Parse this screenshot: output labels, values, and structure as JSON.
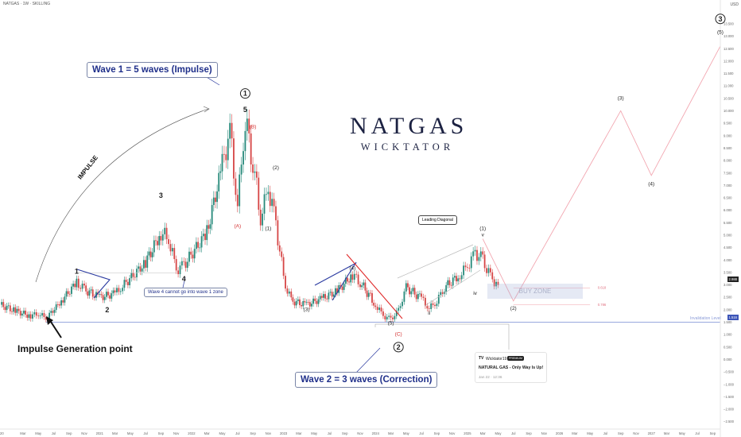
{
  "header": {
    "symbol": "NATGAS · 1W · SKILLING",
    "currency": "USD"
  },
  "logo": {
    "line1": "NATGAS",
    "line2": "WICKTATOR"
  },
  "annotations": {
    "wave1": "Wave 1 = 5 waves (Impulse)",
    "wave2": "Wave 2 = 3 waves (Correction)",
    "wave4_note": "Wave 4 cannot go into wave 1 zone",
    "impulse_gen": "Impulse Generation point",
    "impulse_word": "IMPULSE",
    "leading_diagonal": "Leading Diagonal",
    "buy_zone": "BUY ZONE",
    "invalidation": "Invalidation Level"
  },
  "idea_card": {
    "author": "Wicktator19",
    "badge": "PREMIUM",
    "title": "NATURAL GAS - Only Way Is Up!",
    "date": "Jan 22 · 12:36"
  },
  "price_tags": {
    "current": "2.988",
    "invalidation": "1.516"
  },
  "chart_data": {
    "type": "line",
    "title": "NATGAS · 1W · SKILLING",
    "y_axis": {
      "unit": "USD",
      "ylim": [
        -2.8,
        14.2
      ],
      "ticks": [
        13.5,
        13.0,
        12.5,
        12.0,
        11.5,
        11.0,
        10.5,
        10.0,
        9.5,
        9.0,
        8.5,
        8.0,
        7.5,
        7.0,
        6.5,
        6.0,
        5.5,
        5.0,
        4.5,
        4.0,
        3.5,
        3.0,
        2.5,
        2.0,
        1.5,
        1.0,
        0.5,
        0.0,
        -0.5,
        -1.0,
        -1.5,
        -2.0,
        -2.5
      ],
      "tick_labels": [
        "13.500",
        "13.000",
        "12.500",
        "12.000",
        "11.500",
        "11.000",
        "10.500",
        "10.000",
        "9.500",
        "9.000",
        "8.500",
        "8.000",
        "7.500",
        "7.000",
        "6.500",
        "6.000",
        "5.500",
        "5.000",
        "4.500",
        "4.000",
        "3.500",
        "3.000",
        "2.500",
        "2.000",
        "1.500",
        "1.000",
        "0.500",
        "0.000",
        "−0.500",
        "−1.000",
        "−1.500",
        "−2.000",
        "−2.500"
      ]
    },
    "x_axis": {
      "range": [
        "2019-12",
        "2027-10"
      ],
      "ticks": [
        {
          "date": "2019-12",
          "label": "2020"
        },
        {
          "date": "2020-03",
          "label": "Mar"
        },
        {
          "date": "2020-05",
          "label": "May"
        },
        {
          "date": "2020-07",
          "label": "Jul"
        },
        {
          "date": "2020-09",
          "label": "Sep"
        },
        {
          "date": "2020-11",
          "label": "Nov"
        },
        {
          "date": "2021-01",
          "label": "2021"
        },
        {
          "date": "2021-03",
          "label": "Mar"
        },
        {
          "date": "2021-05",
          "label": "May"
        },
        {
          "date": "2021-07",
          "label": "Jul"
        },
        {
          "date": "2021-09",
          "label": "Sep"
        },
        {
          "date": "2021-11",
          "label": "Nov"
        },
        {
          "date": "2022-01",
          "label": "2022"
        },
        {
          "date": "2022-03",
          "label": "Mar"
        },
        {
          "date": "2022-05",
          "label": "May"
        },
        {
          "date": "2022-07",
          "label": "Jul"
        },
        {
          "date": "2022-09",
          "label": "Sep"
        },
        {
          "date": "2022-11",
          "label": "Nov"
        },
        {
          "date": "2023-01",
          "label": "2023"
        },
        {
          "date": "2023-03",
          "label": "Mar"
        },
        {
          "date": "2023-05",
          "label": "May"
        },
        {
          "date": "2023-07",
          "label": "Jul"
        },
        {
          "date": "2023-09",
          "label": "Sep"
        },
        {
          "date": "2023-11",
          "label": "Nov"
        },
        {
          "date": "2024-01",
          "label": "2024"
        },
        {
          "date": "2024-03",
          "label": "Mar"
        },
        {
          "date": "2024-05",
          "label": "May"
        },
        {
          "date": "2024-07",
          "label": "Jul"
        },
        {
          "date": "2024-09",
          "label": "Sep"
        },
        {
          "date": "2024-11",
          "label": "Nov"
        },
        {
          "date": "2025-01",
          "label": "2025"
        },
        {
          "date": "2025-03",
          "label": "Mar"
        },
        {
          "date": "2025-05",
          "label": "May"
        },
        {
          "date": "2025-07",
          "label": "Jul"
        },
        {
          "date": "2025-09",
          "label": "Sep"
        },
        {
          "date": "2025-11",
          "label": "Nov"
        },
        {
          "date": "2026-01",
          "label": "2026"
        },
        {
          "date": "2026-03",
          "label": "Mar"
        },
        {
          "date": "2026-05",
          "label": "May"
        },
        {
          "date": "2026-07",
          "label": "Jul"
        },
        {
          "date": "2026-09",
          "label": "Sep"
        },
        {
          "date": "2026-11",
          "label": "Nov"
        },
        {
          "date": "2027-01",
          "label": "2027"
        },
        {
          "date": "2027-03",
          "label": "Mar"
        },
        {
          "date": "2027-05",
          "label": "May"
        },
        {
          "date": "2027-07",
          "label": "Jul"
        },
        {
          "date": "2027-09",
          "label": "Sep"
        }
      ]
    },
    "price_path": [
      [
        "2019-12",
        2.2
      ],
      [
        "2020-02",
        1.95
      ],
      [
        "2020-04",
        1.75
      ],
      [
        "2020-05",
        1.85
      ],
      [
        "2020-06",
        1.65
      ],
      [
        "2020-08",
        2.35
      ],
      [
        "2020-10",
        3.1
      ],
      [
        "2020-11",
        2.8
      ],
      [
        "2021-01",
        2.5
      ],
      [
        "2021-03",
        2.65
      ],
      [
        "2021-04",
        2.95
      ],
      [
        "2021-07",
        3.9
      ],
      [
        "2021-09",
        5.1
      ],
      [
        "2021-10",
        4.85
      ],
      [
        "2021-11",
        3.6
      ],
      [
        "2021-12",
        3.8
      ],
      [
        "2022-03",
        5.1
      ],
      [
        "2022-05",
        7.8
      ],
      [
        "2022-06",
        9.2
      ],
      [
        "2022-07",
        6.2
      ],
      [
        "2022-08",
        9.6
      ],
      [
        "2022-09",
        8.0
      ],
      [
        "2022-10",
        5.7
      ],
      [
        "2022-11",
        6.9
      ],
      [
        "2022-12",
        5.5
      ],
      [
        "2023-01",
        3.2
      ],
      [
        "2023-02",
        2.35
      ],
      [
        "2023-04",
        2.2
      ],
      [
        "2023-06",
        2.45
      ],
      [
        "2023-08",
        2.75
      ],
      [
        "2023-10",
        3.4
      ],
      [
        "2023-11",
        3.1
      ],
      [
        "2024-01",
        2.2
      ],
      [
        "2024-02",
        1.75
      ],
      [
        "2024-03",
        1.62
      ],
      [
        "2024-04",
        1.95
      ],
      [
        "2024-05",
        2.9
      ],
      [
        "2024-07",
        2.45
      ],
      [
        "2024-08",
        2.05
      ],
      [
        "2024-09",
        2.35
      ],
      [
        "2024-10",
        2.9
      ],
      [
        "2024-12",
        3.4
      ],
      [
        "2025-01",
        3.75
      ],
      [
        "2025-02",
        4.3
      ],
      [
        "2025-03",
        4.0
      ],
      [
        "2025-04",
        3.3
      ],
      [
        "2025-05",
        2.99
      ]
    ],
    "projection": [
      [
        "2025-03",
        4.85
      ],
      [
        "2025-07",
        2.35
      ],
      [
        "2026-09",
        10.0
      ],
      [
        "2027-01",
        7.4
      ],
      [
        "2027-10",
        12.6
      ]
    ],
    "wave_labels": [
      {
        "label": "1",
        "date": "2020-10",
        "price": 3.45
      },
      {
        "label": "2",
        "date": "2021-02",
        "price": 1.9
      },
      {
        "label": "3",
        "date": "2021-09",
        "price": 6.5
      },
      {
        "label": "4",
        "date": "2021-12",
        "price": 3.15
      },
      {
        "label": "5",
        "date": "2022-08",
        "price": 9.95
      },
      {
        "label": "1",
        "date": "2022-08",
        "price": 10.6,
        "circled": true
      },
      {
        "label": "(B)",
        "date": "2022-09",
        "price": 9.3,
        "color": "#d32f2f"
      },
      {
        "label": "(A)",
        "date": "2022-07",
        "price": 5.3,
        "color": "#d32f2f"
      },
      {
        "label": "(1)",
        "date": "2022-11",
        "price": 5.2
      },
      {
        "label": "(2)",
        "date": "2022-12",
        "price": 7.65
      },
      {
        "label": "(3)",
        "date": "2023-04",
        "price": 1.95
      },
      {
        "label": "(4)",
        "date": "2023-10",
        "price": 3.6
      },
      {
        "label": "(5)",
        "date": "2024-03",
        "price": 1.4
      },
      {
        "label": "(C)",
        "date": "2024-04",
        "price": 0.95,
        "color": "#d32f2f"
      },
      {
        "label": "2",
        "date": "2024-04",
        "price": 0.4,
        "circled": true
      },
      {
        "label": "(1)",
        "date": "2025-03",
        "price": 5.2
      },
      {
        "label": "v",
        "date": "2025-03",
        "price": 4.95
      },
      {
        "label": "iv",
        "date": "2025-02",
        "price": 2.6
      },
      {
        "label": "ii",
        "date": "2024-08",
        "price": 1.8
      },
      {
        "label": "(2)",
        "date": "2025-07",
        "price": 2.0
      },
      {
        "label": "(3)",
        "date": "2026-09",
        "price": 10.45
      },
      {
        "label": "(4)",
        "date": "2027-01",
        "price": 7.0
      },
      {
        "label": "(5)",
        "date": "2027-10",
        "price": 13.1
      },
      {
        "label": "3",
        "date": "2027-10",
        "price": 13.6,
        "circled": true
      }
    ],
    "levels": {
      "invalidation": 1.5,
      "fib": [
        {
          "label": "0.618",
          "value": 2.88
        },
        {
          "label": "0.786",
          "value": 2.2
        }
      ],
      "buy_zone": [
        2.3,
        2.9
      ]
    }
  },
  "colors": {
    "bull": "#26897a",
    "bear": "#d64545",
    "accent": "#1f2f8a",
    "projection": "#f2a6b0",
    "invalidation": "#8a9bd8"
  }
}
